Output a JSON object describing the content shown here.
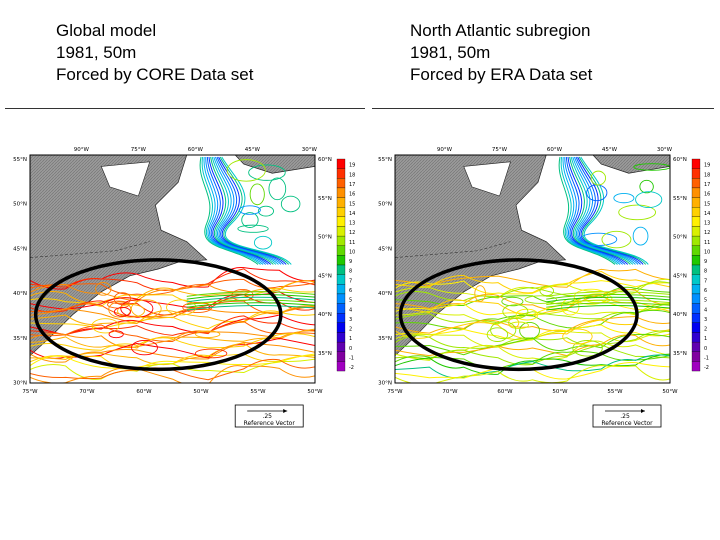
{
  "left": {
    "title": "Global model",
    "year_depth": "1981, 50m",
    "forcing": "Forced by CORE Data set",
    "top_lon_labels": [
      "90°W",
      "75°W",
      "60°W",
      "45°W",
      "30°W"
    ],
    "bottom_lon_labels": [
      "75°W",
      "70°W",
      "60°W",
      "50°W",
      "55°W",
      "50°W"
    ],
    "left_lat_labels": [
      "55°N",
      "50°N",
      "45°N",
      "40°N",
      "35°N",
      "30°N"
    ],
    "right_lat_labels": [
      "60°N",
      "55°N",
      "50°N",
      "45°N",
      "40°N",
      "35°N"
    ],
    "colorbar_labels": [
      "19",
      "18",
      "17",
      "16",
      "15",
      "14",
      "13",
      "12",
      "11",
      "10",
      "9",
      "8",
      "7",
      "6",
      "5",
      "4",
      "3",
      "2",
      "1",
      "0",
      "-1",
      "-2"
    ],
    "ref_value": ".25",
    "ref_label": "Reference Vector"
  },
  "right": {
    "title": "North Atlantic subregion",
    "year_depth": "1981, 50m",
    "forcing": "Forced by ERA Data set",
    "top_lon_labels": [
      "90°W",
      "75°W",
      "60°W",
      "45°W",
      "30°W"
    ],
    "bottom_lon_labels": [
      "75°W",
      "70°W",
      "60°W",
      "50°W",
      "55°W",
      "50°W"
    ],
    "left_lat_labels": [
      "55°N",
      "50°N",
      "45°N",
      "40°N",
      "35°N",
      "30°N"
    ],
    "right_lat_labels": [
      "60°N",
      "55°N",
      "50°N",
      "45°N",
      "40°N",
      "35°N"
    ],
    "colorbar_labels": [
      "19",
      "18",
      "17",
      "16",
      "15",
      "14",
      "13",
      "12",
      "11",
      "10",
      "9",
      "8",
      "7",
      "6",
      "5",
      "4",
      "3",
      "2",
      "1",
      "0",
      "-1",
      "-2"
    ],
    "ref_value": ".25",
    "ref_label": "Reference Vector"
  },
  "colors": {
    "colorbar": [
      "#ff0000",
      "#ff3000",
      "#ff6000",
      "#ff9000",
      "#ffb000",
      "#ffd000",
      "#fff000",
      "#d8f000",
      "#a0e800",
      "#60d800",
      "#20c800",
      "#00c080",
      "#00c8c8",
      "#00b0f0",
      "#0090ff",
      "#0060ff",
      "#0030ff",
      "#0000f0",
      "#3000d0",
      "#6000b0",
      "#8000a0",
      "#a000c0"
    ],
    "land": "#9a9a9a",
    "ocean": "#ffffff",
    "ellipse": "#000000"
  }
}
